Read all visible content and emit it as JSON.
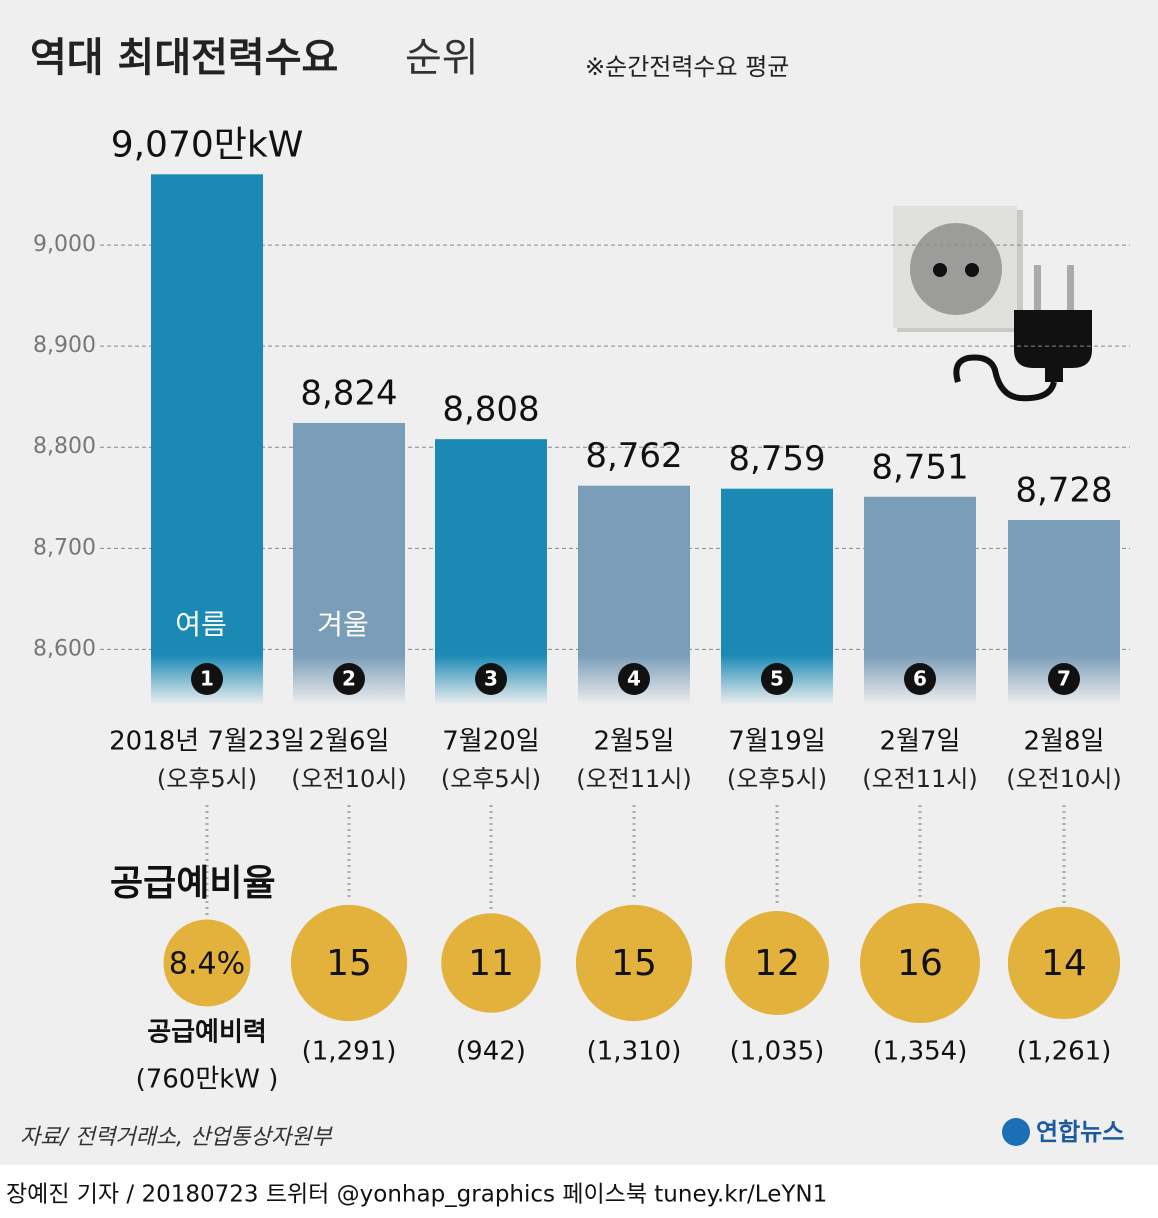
{
  "chart_data": {
    "type": "bar",
    "title": "역대 최대전력수요",
    "title_light": "순위",
    "note": "※순간전력수요 평균",
    "categories": [
      "2018년 7월23일",
      "2월6일",
      "7월20일",
      "2월5일",
      "7월19일",
      "2월7일",
      "2월8일"
    ],
    "time_labels": [
      "(오후5시)",
      "(오전10시)",
      "(오후5시)",
      "(오전11시)",
      "(오후5시)",
      "(오전11시)",
      "(오전10시)"
    ],
    "values": [
      9070,
      8824,
      8808,
      8762,
      8759,
      8751,
      8728
    ],
    "value_labels": [
      "9,070만kW",
      "8,824",
      "8,808",
      "8,762",
      "8,759",
      "8,751",
      "8,728"
    ],
    "colors": [
      "#1a8ab5",
      "#7a9db8",
      "#1a8ab5",
      "#7a9db8",
      "#1a8ab5",
      "#7a9db8",
      "#7a9db8"
    ],
    "legend": [
      {
        "name": "여름",
        "color": "#1a8ab5"
      },
      {
        "name": "겨울",
        "color": "#7a9db8"
      }
    ],
    "ranks": [
      1,
      2,
      3,
      4,
      5,
      6,
      7
    ],
    "ylim": [
      8545,
      9100
    ],
    "yticks": [
      {
        "value": 8600,
        "label": "8,600"
      },
      {
        "value": 8700,
        "label": "8,700"
      },
      {
        "value": 8800,
        "label": "8,800"
      },
      {
        "value": 8900,
        "label": "8,900"
      },
      {
        "value": 9000,
        "label": "9,000"
      }
    ],
    "grid": true,
    "reserve_ratio": {
      "title": "공급예비율",
      "color": "#e3b23c",
      "values": [
        8.4,
        15,
        11,
        15,
        12,
        16,
        14
      ],
      "value_labels": [
        "8.4%",
        "15",
        "11",
        "15",
        "12",
        "16",
        "14"
      ]
    },
    "reserve_power": {
      "title": "공급예비력",
      "values": [
        760,
        1291,
        942,
        1310,
        1035,
        1354,
        1261
      ],
      "value_labels": [
        "(760만kW )",
        "(1,291)",
        "(942)",
        "(1,310)",
        "(1,035)",
        "(1,354)",
        "(1,261)"
      ]
    },
    "source": "자료/ 전력거래소, 산업통상자원부",
    "logo": "연합뉴스",
    "credit": "장예진 기자 / 20180723 트위터 @yonhap_graphics  페이스북 tuney.kr/LeYN1"
  }
}
